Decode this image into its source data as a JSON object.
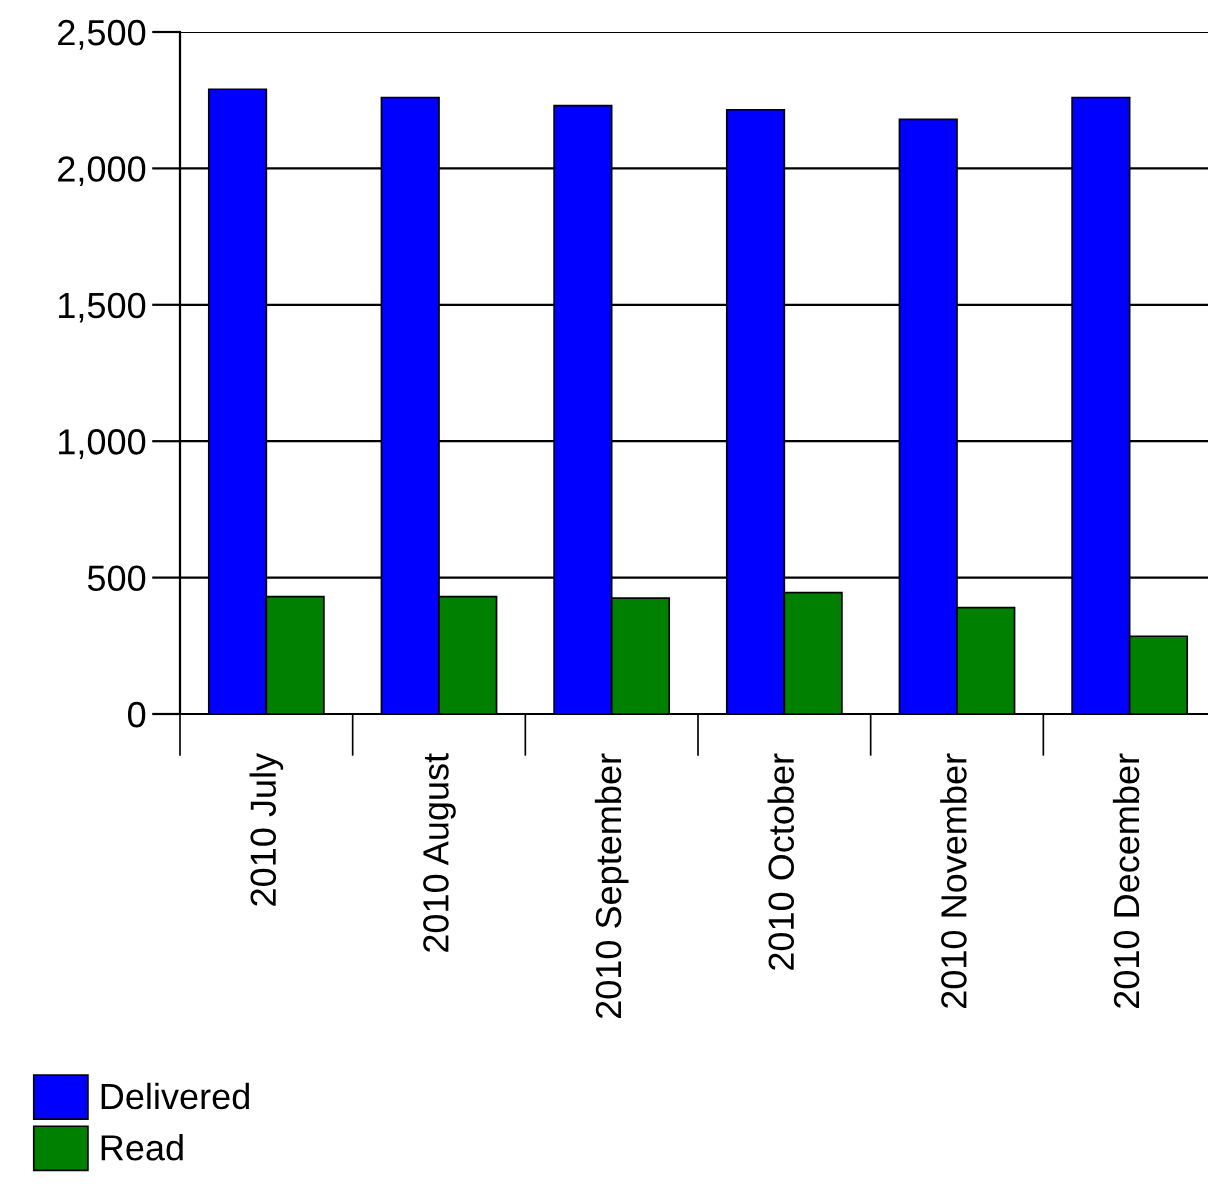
{
  "chart_data": {
    "type": "bar",
    "categories": [
      "2010 July",
      "2010 August",
      "2010 September",
      "2010 October",
      "2010 November",
      "2010 December"
    ],
    "series": [
      {
        "name": "Delivered",
        "color": "#0000ff",
        "values": [
          2290,
          2260,
          2230,
          2215,
          2180,
          2260
        ]
      },
      {
        "name": "Read",
        "color": "#008000",
        "values": [
          430,
          430,
          425,
          445,
          390,
          285
        ]
      }
    ],
    "ylim": [
      0,
      2500
    ],
    "yticks": [
      {
        "value": 0,
        "label": "0"
      },
      {
        "value": 500,
        "label": "500"
      },
      {
        "value": 1000,
        "label": "1,000"
      },
      {
        "value": 1500,
        "label": "1,500"
      },
      {
        "value": 2000,
        "label": "2,000"
      },
      {
        "value": 2500,
        "label": "2,500"
      }
    ],
    "grid": "y",
    "legend": "bottom left"
  }
}
